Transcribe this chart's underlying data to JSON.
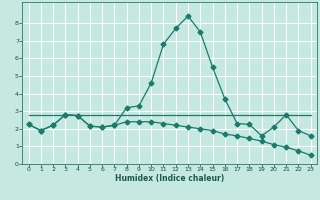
{
  "title": "",
  "xlabel": "Humidex (Indice chaleur)",
  "background_color": "#c5e8e0",
  "grid_color": "#ffffff",
  "line_color": "#1a7a6e",
  "xlim": [
    -0.5,
    23.5
  ],
  "ylim": [
    0,
    9.2
  ],
  "xticks": [
    0,
    1,
    2,
    3,
    4,
    5,
    6,
    7,
    8,
    9,
    10,
    11,
    12,
    13,
    14,
    15,
    16,
    17,
    18,
    19,
    20,
    21,
    22,
    23
  ],
  "yticks": [
    0,
    1,
    2,
    3,
    4,
    5,
    6,
    7,
    8
  ],
  "line1_x": [
    0,
    1,
    2,
    3,
    4,
    5,
    6,
    7,
    8,
    9,
    10,
    11,
    12,
    13,
    14,
    15,
    16,
    17,
    18,
    19,
    20,
    21,
    22,
    23
  ],
  "line1_y": [
    2.25,
    1.9,
    2.2,
    2.8,
    2.75,
    2.15,
    2.1,
    2.2,
    3.2,
    3.3,
    4.6,
    6.8,
    7.7,
    8.4,
    7.5,
    5.5,
    3.7,
    2.3,
    2.25,
    1.6,
    2.1,
    2.8,
    1.9,
    1.6
  ],
  "line2_x": [
    0,
    1,
    2,
    3,
    4,
    5,
    6,
    7,
    8,
    9,
    10,
    11,
    12,
    13,
    14,
    15,
    16,
    17,
    18,
    19,
    20,
    21,
    22,
    23
  ],
  "line2_y": [
    2.25,
    1.9,
    2.2,
    2.8,
    2.75,
    2.15,
    2.1,
    2.2,
    2.4,
    2.4,
    2.4,
    2.3,
    2.2,
    2.1,
    2.0,
    1.9,
    1.7,
    1.6,
    1.45,
    1.3,
    1.1,
    0.95,
    0.75,
    0.5
  ],
  "line3_x": [
    0,
    23
  ],
  "line3_y": [
    2.8,
    2.8
  ],
  "markersize": 2.5
}
